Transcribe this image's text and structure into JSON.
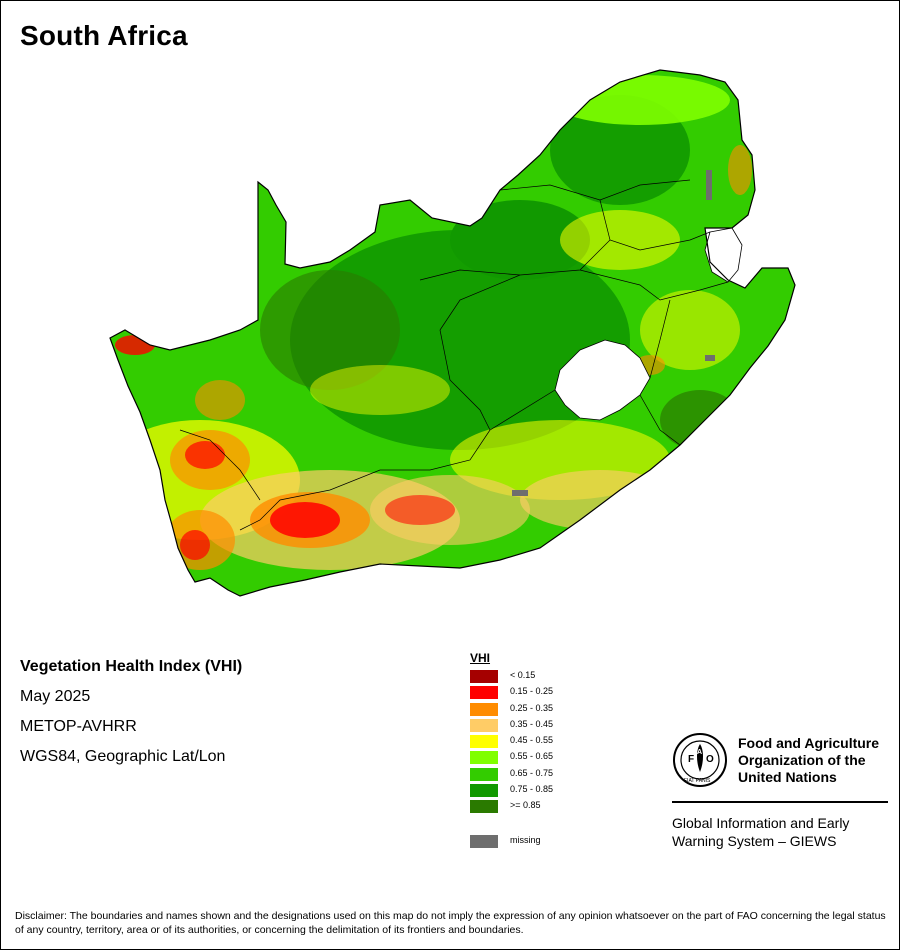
{
  "map_title": "South Africa",
  "info": {
    "index_name": "Vegetation Health Index (VHI)",
    "period": "May 2025",
    "sensor": "METOP-AVHRR",
    "projection": "WGS84, Geographic Lat/Lon"
  },
  "legend": {
    "title": "VHI",
    "classes": [
      {
        "label": "< 0.15",
        "color": "#a50000"
      },
      {
        "label": "0.15 - 0.25",
        "color": "#ff0000"
      },
      {
        "label": "0.25 - 0.35",
        "color": "#ff8c00"
      },
      {
        "label": "0.35 - 0.45",
        "color": "#ffcc66"
      },
      {
        "label": "0.45 - 0.55",
        "color": "#ffff00"
      },
      {
        "label": "0.55 - 0.65",
        "color": "#80ff00"
      },
      {
        "label": "0.65 - 0.75",
        "color": "#33cc00"
      },
      {
        "label": "0.75 - 0.85",
        "color": "#119900"
      },
      {
        "label": ">= 0.85",
        "color": "#2a7a00"
      }
    ],
    "missing": {
      "label": "missing",
      "color": "#6e6e6e"
    }
  },
  "organization": {
    "name_line1": "Food and Agriculture",
    "name_line2": "Organization of the",
    "name_line3": "United Nations",
    "emblem_text": "FIAT PANIS",
    "giews_line1": "Global Information and Early",
    "giews_line2": "Warning System – GIEWS"
  },
  "disclaimer": "Disclaimer: The boundaries and names shown and the designations used on this map do not imply the expression of any opinion whatsoever on the part of FAO concerning the legal status of any country, territory, area or of its authorities, or concerning the delimitation of its frontiers and boundaries."
}
